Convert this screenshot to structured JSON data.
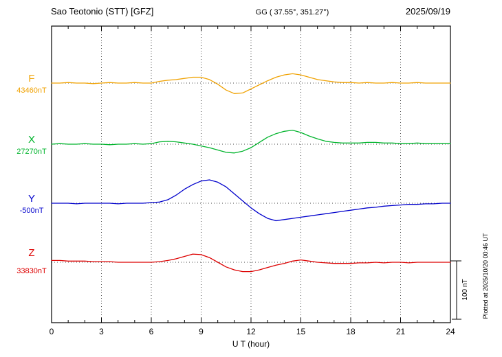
{
  "header": {
    "station_title": "Sao Teotonio (STT)  [GFZ]",
    "gg_coords": "GG ( 37.55°, 351.27°)",
    "date": "2025/09/19"
  },
  "traces": [
    {
      "id": "F",
      "label": "F",
      "value_label": "43460nT",
      "color": "#f0a202",
      "baseline_nT": 43460
    },
    {
      "id": "X",
      "label": "X",
      "value_label": "27270nT",
      "color": "#00b42c",
      "baseline_nT": 27270
    },
    {
      "id": "Y",
      "label": "Y",
      "value_label": "-500nT",
      "color": "#0000cc",
      "baseline_nT": -500
    },
    {
      "id": "Z",
      "label": "Z",
      "value_label": "33830nT",
      "color": "#dd0000",
      "baseline_nT": 33830
    }
  ],
  "x_axis": {
    "label": "U T (hour)",
    "tick_labels": [
      "0",
      "3",
      "6",
      "9",
      "12",
      "15",
      "18",
      "21",
      "24"
    ],
    "min": 0,
    "max": 24,
    "minor_step": 1,
    "major_step": 3
  },
  "scale_bar": {
    "label": "100 nT",
    "value_nT": 100
  },
  "side_note": "Plotted at 2025/10/20 00:46 UT",
  "chart_data": {
    "type": "line",
    "title": "Sao Teotonio (STT) [GFZ] magnetogram 2025/09/19",
    "xlabel": "U T (hour)",
    "x_range": [
      0,
      24
    ],
    "x_start": 0,
    "x_step": 0.5,
    "grid": "dotted vertical lines every 3 h; dotted horizontal baseline per trace",
    "legend_position": "left labels",
    "scale_reference_nT": 100,
    "series": [
      {
        "name": "F",
        "units": "nT",
        "baseline": 43460,
        "color": "#f0a202",
        "offsets_nT": [
          0,
          0,
          1,
          0,
          0,
          -1,
          0,
          1,
          0,
          0,
          1,
          0,
          0,
          3,
          5,
          6,
          8,
          10,
          10,
          6,
          -2,
          -12,
          -18,
          -17,
          -10,
          -3,
          4,
          10,
          14,
          16,
          14,
          10,
          6,
          4,
          2,
          1,
          1,
          0,
          1,
          0,
          0,
          1,
          0,
          0,
          1,
          0,
          0,
          0,
          0
        ]
      },
      {
        "name": "X",
        "units": "nT",
        "baseline": 27270,
        "color": "#00b42c",
        "offsets_nT": [
          0,
          1,
          0,
          0,
          1,
          0,
          0,
          -1,
          0,
          0,
          1,
          0,
          1,
          4,
          5,
          4,
          2,
          0,
          -3,
          -6,
          -10,
          -14,
          -15,
          -12,
          -6,
          3,
          12,
          18,
          22,
          24,
          20,
          14,
          9,
          5,
          3,
          2,
          2,
          2,
          3,
          3,
          2,
          2,
          1,
          1,
          2,
          1,
          1,
          1,
          1
        ]
      },
      {
        "name": "Y",
        "units": "nT",
        "baseline": -500,
        "color": "#0000cc",
        "offsets_nT": [
          0,
          0,
          0,
          -1,
          0,
          0,
          0,
          0,
          -1,
          0,
          0,
          0,
          1,
          2,
          6,
          14,
          24,
          32,
          38,
          40,
          36,
          28,
          16,
          4,
          -8,
          -18,
          -26,
          -30,
          -28,
          -26,
          -24,
          -22,
          -20,
          -18,
          -16,
          -14,
          -12,
          -10,
          -8,
          -7,
          -5,
          -4,
          -3,
          -2,
          -2,
          -1,
          -1,
          0,
          0
        ]
      },
      {
        "name": "Z",
        "units": "nT",
        "baseline": 33830,
        "color": "#dd0000",
        "offsets_nT": [
          3,
          3,
          2,
          2,
          2,
          1,
          1,
          1,
          0,
          0,
          0,
          0,
          0,
          1,
          3,
          6,
          10,
          14,
          13,
          8,
          0,
          -8,
          -13,
          -16,
          -16,
          -13,
          -9,
          -5,
          -2,
          2,
          4,
          2,
          0,
          -1,
          -2,
          -2,
          -2,
          -1,
          -1,
          0,
          -1,
          0,
          0,
          -1,
          0,
          0,
          0,
          0,
          0
        ]
      }
    ]
  }
}
